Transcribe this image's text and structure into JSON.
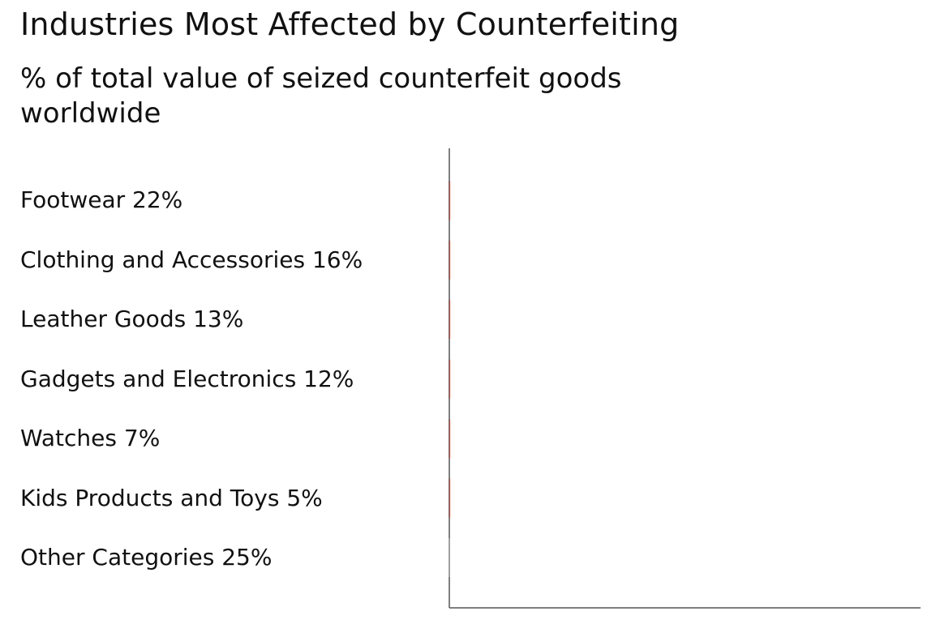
{
  "chart_data": {
    "type": "bar",
    "orientation": "horizontal",
    "title": "Industries Most Affected by Counterfeiting",
    "subtitle": "% of total value of seized counterfeit goods worldwide",
    "categories": [
      "Footwear",
      "Clothing and Accessories",
      "Leather Goods",
      "Gadgets and Electronics",
      "Watches",
      "Kids Products and Toys",
      "Other Categories"
    ],
    "labels": [
      "Footwear 22%",
      "Clothing and Accessories 16%",
      "Leather Goods 13%",
      "Gadgets and Electronics 12%",
      "Watches 7%",
      "Kids Products and Toys 5%",
      "Other Categories 25%"
    ],
    "values": [
      22,
      16,
      13,
      12,
      7,
      5,
      25
    ],
    "unit": "%",
    "bar_color": "#c0392b",
    "other_bar_color": "#9e9e9e",
    "axis_color": "#555555",
    "grid": false,
    "legend": "none"
  }
}
